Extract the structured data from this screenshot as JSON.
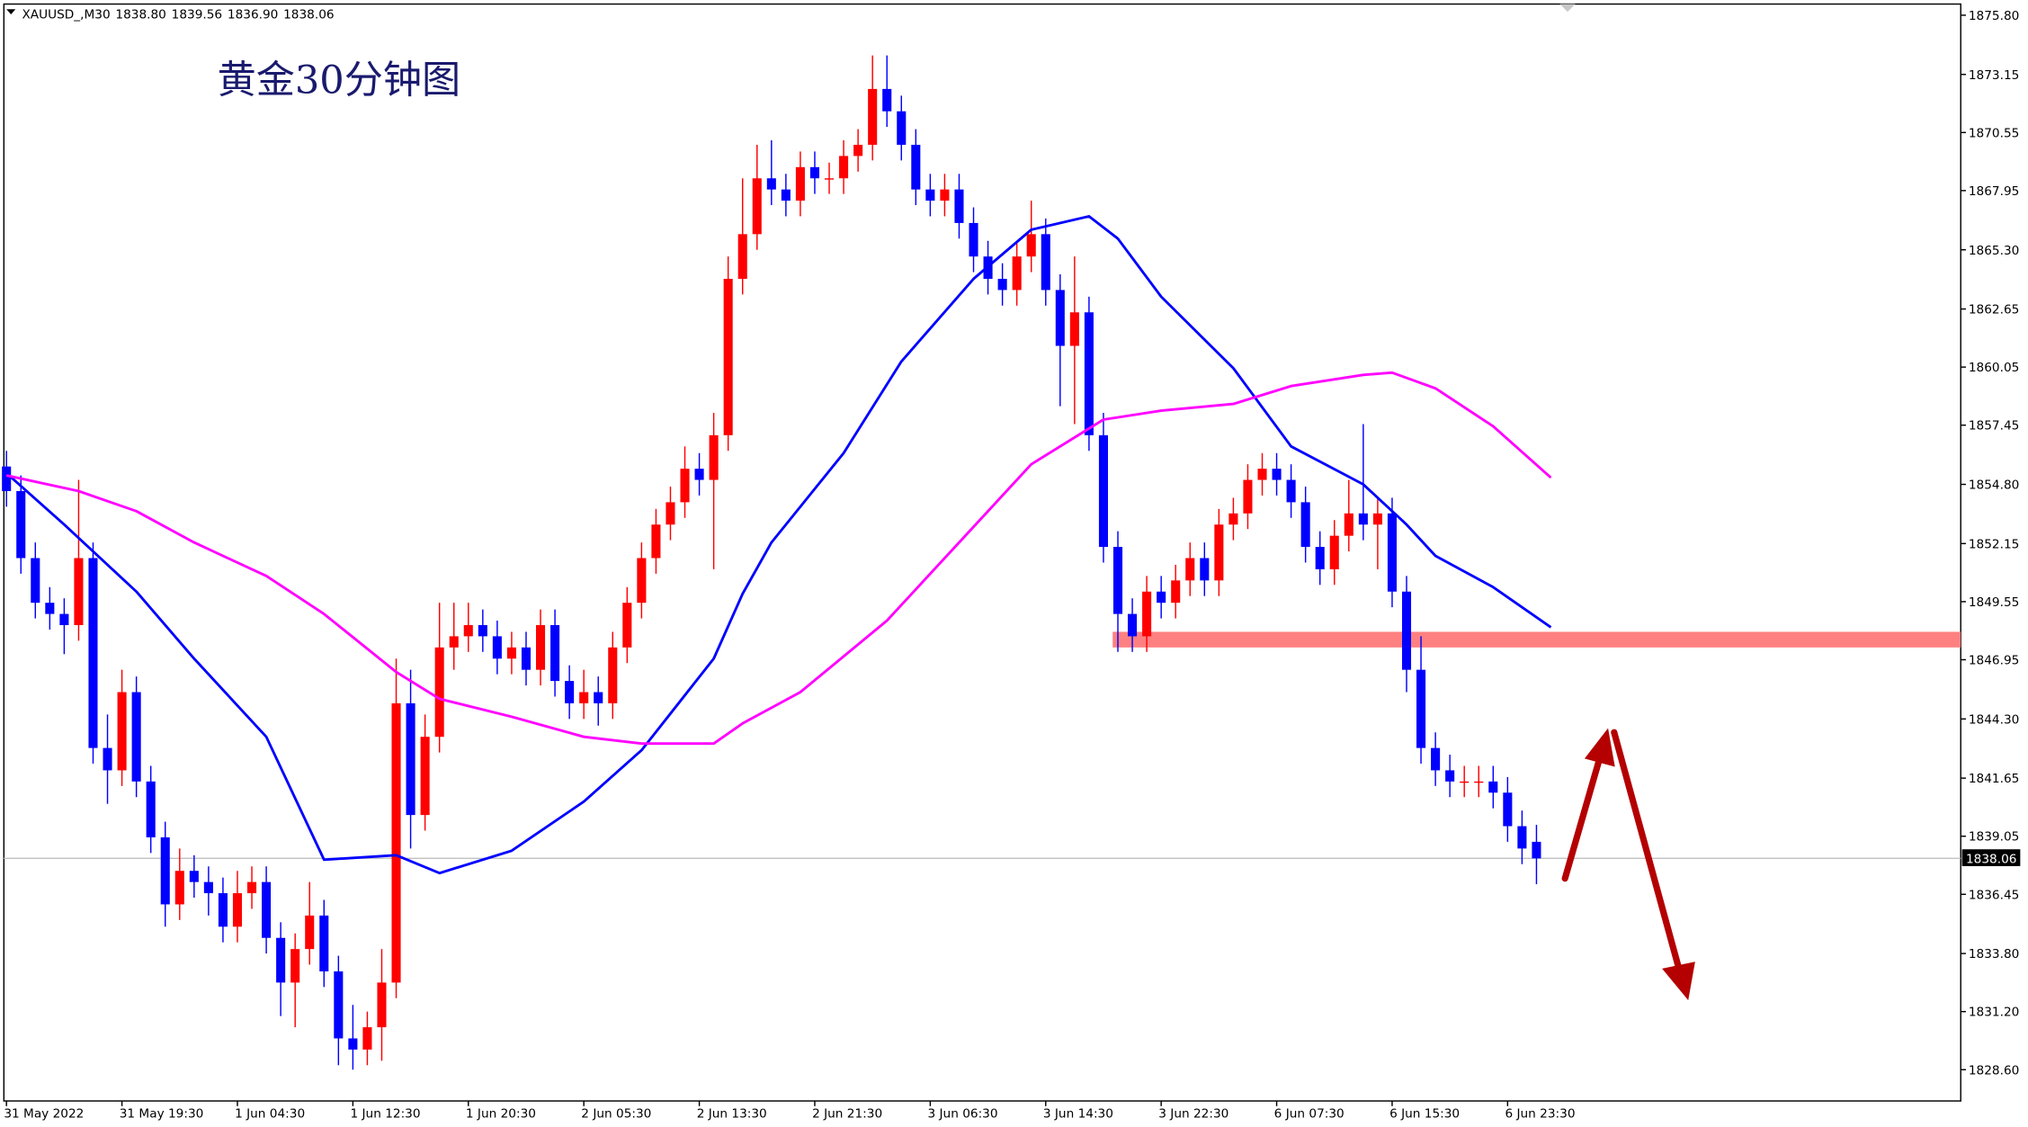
{
  "chart_data": {
    "type": "candlestick",
    "symbol": "XAUUSD_,M30",
    "header_prices": [
      {
        "value": 1838.8,
        "label": "1838.80"
      },
      1839.56,
      {
        "value": 1836.9,
        "label": "1836.90"
      },
      1838.06
    ],
    "annotation": "黄金30分钟图",
    "categories": [
      "31 May 2022",
      null,
      null,
      null,
      null,
      null,
      null,
      null,
      "31 May 19:30",
      null,
      null,
      null,
      null,
      null,
      null,
      null,
      "1 Jun 04:30",
      null,
      null,
      null,
      null,
      null,
      null,
      null,
      "1 Jun 12:30",
      null,
      null,
      null,
      null,
      null,
      null,
      null,
      "1 Jun 20:30",
      null,
      null,
      null,
      null,
      null,
      null,
      null,
      "2 Jun 05:30",
      null,
      null,
      null,
      null,
      null,
      null,
      null,
      "2 Jun 13:30",
      null,
      null,
      null,
      null,
      null,
      null,
      null,
      "2 Jun 21:30",
      null,
      null,
      null,
      null,
      null,
      null,
      null,
      "3 Jun 06:30",
      null,
      null,
      null,
      null,
      null,
      null,
      null,
      "3 Jun 14:30",
      null,
      null,
      null,
      null,
      null,
      null,
      null,
      "3 Jun 22:30",
      null,
      null,
      null,
      null,
      null,
      null,
      null,
      "6 Jun 07:30",
      null,
      null,
      null,
      null,
      null,
      null,
      null,
      "6 Jun 15:30",
      null,
      null,
      null,
      null,
      null,
      null,
      null,
      "6 Jun 23:30",
      null,
      null
    ],
    "open": [
      1855.6,
      1854.5,
      1851.5,
      1849.5,
      1849,
      1848.5,
      1851.5,
      1843,
      1842,
      1845.5,
      1841.5,
      1839,
      1836,
      1837.5,
      1837,
      1836.5,
      1835,
      1836.5,
      1837,
      1834.5,
      1832.5,
      1834,
      1835.5,
      1833,
      1830,
      1829.5,
      1830.5,
      1832.5,
      1845,
      1840,
      1843.5,
      1847.5,
      1848,
      1848.5,
      1848,
      1847,
      1847.5,
      1846.5,
      1848.5,
      1846,
      1845,
      1845.5,
      1845,
      1847.5,
      1849.5,
      1851.5,
      1853,
      1854,
      1855.5,
      1855,
      1857,
      1864,
      1866,
      1868.5,
      1868,
      1867.5,
      1869,
      1868.5,
      1868.5,
      1869.5,
      1870,
      1872.5,
      1871.5,
      1870,
      1868,
      1867.5,
      1868,
      1866.5,
      1865,
      1864,
      1863.5,
      1865,
      1866,
      1863.5,
      1861,
      1862.5,
      1857,
      1852,
      1849,
      1848,
      1850,
      1849.5,
      1850.5,
      1851.5,
      1850.5,
      1853,
      1853.5,
      1855,
      1855.5,
      1855,
      1854,
      1852,
      1851,
      1852.5,
      1853.5,
      1853,
      1853.5,
      1850,
      1846.5,
      1843,
      1842,
      1841.5,
      1841.5,
      1841.5,
      1841,
      1839.5,
      1838.8
    ],
    "high": [
      1856.3,
      1855.2,
      1852.2,
      1850.2,
      1849.7,
      1855,
      1852.2,
      1844.5,
      1846.5,
      1846.2,
      1842.2,
      1839.7,
      1838.5,
      1838.2,
      1837.7,
      1837.2,
      1837.5,
      1837.7,
      1837.7,
      1835.2,
      1834.7,
      1837,
      1836.2,
      1833.7,
      1831.5,
      1831.2,
      1834,
      1847,
      1846.5,
      1844.5,
      1849.5,
      1849.5,
      1849.5,
      1849.2,
      1848.7,
      1848.2,
      1848.2,
      1849.2,
      1849.2,
      1846.7,
      1846.5,
      1846.2,
      1848.2,
      1850.2,
      1852.2,
      1853.7,
      1854.7,
      1856.5,
      1856.2,
      1858,
      1865,
      1868.5,
      1870,
      1870.2,
      1868.7,
      1869.7,
      1869.7,
      1869.2,
      1870.2,
      1870.7,
      1874,
      1874,
      1872.2,
      1870.7,
      1868.7,
      1868.7,
      1868.7,
      1867.2,
      1865.7,
      1864.7,
      1865.7,
      1867.5,
      1866.7,
      1864.2,
      1865,
      1863.2,
      1858,
      1852.7,
      1849.7,
      1850.7,
      1850.7,
      1851.2,
      1852.2,
      1852.2,
      1853.7,
      1854.2,
      1855.7,
      1856.2,
      1856.2,
      1855.7,
      1854.7,
      1852.7,
      1853.2,
      1855,
      1857.5,
      1854.2,
      1854.2,
      1850.7,
      1848,
      1843.7,
      1842.7,
      1842.2,
      1842.2,
      1842.2,
      1841.7,
      1840.2,
      1839.56
    ],
    "low": [
      1853.8,
      1850.8,
      1848.8,
      1848.3,
      1847.2,
      1847.8,
      1842.3,
      1840.5,
      1841.3,
      1840.8,
      1838.3,
      1835,
      1835.3,
      1836.3,
      1835.5,
      1834.3,
      1834.3,
      1835.8,
      1833.8,
      1831,
      1830.5,
      1833.3,
      1832.3,
      1828.8,
      1828.6,
      1828.8,
      1829,
      1831.8,
      1838.5,
      1839.3,
      1842.8,
      1846.5,
      1847.3,
      1847.3,
      1846.3,
      1846.3,
      1845.8,
      1845.8,
      1845.3,
      1844.3,
      1844.3,
      1844,
      1844.3,
      1846.8,
      1848.8,
      1850.8,
      1852.3,
      1853.3,
      1854.3,
      1851,
      1856.3,
      1863.3,
      1865.3,
      1867.3,
      1866.8,
      1866.8,
      1867.8,
      1867.8,
      1867.8,
      1868.8,
      1869.3,
      1870.8,
      1869.3,
      1867.3,
      1866.8,
      1866.8,
      1865.8,
      1864.3,
      1863.3,
      1862.8,
      1862.8,
      1864.3,
      1862.8,
      1858.3,
      1857.5,
      1856.3,
      1851.3,
      1847.3,
      1847.3,
      1847.3,
      1848.8,
      1848.8,
      1849.8,
      1849.8,
      1849.8,
      1852.3,
      1852.8,
      1854.3,
      1854.3,
      1853.3,
      1851.3,
      1850.3,
      1850.3,
      1851.8,
      1852.3,
      1851,
      1849.3,
      1845.5,
      1842.3,
      1841.3,
      1840.8,
      1840.8,
      1840.8,
      1840.3,
      1838.8,
      1837.8,
      1836.9
    ],
    "close": [
      1854.5,
      1851.5,
      1849.5,
      1849,
      1848.5,
      1851.5,
      1843,
      1842,
      1845.5,
      1841.5,
      1839,
      1836,
      1837.5,
      1837,
      1836.5,
      1835,
      1836.5,
      1837,
      1834.5,
      1832.5,
      1834,
      1835.5,
      1833,
      1830,
      1829.5,
      1830.5,
      1832.5,
      1845,
      1840,
      1843.5,
      1847.5,
      1848,
      1848.5,
      1848,
      1847,
      1847.5,
      1846.5,
      1848.5,
      1846,
      1845,
      1845.5,
      1845,
      1847.5,
      1849.5,
      1851.5,
      1853,
      1854,
      1855.5,
      1855,
      1857,
      1864,
      1866,
      1868.5,
      1868,
      1867.5,
      1869,
      1868.5,
      1868.5,
      1869.5,
      1870,
      1872.5,
      1871.5,
      1870,
      1868,
      1867.5,
      1868,
      1866.5,
      1865,
      1864,
      1863.5,
      1865,
      1866,
      1863.5,
      1861,
      1862.5,
      1857,
      1852,
      1849,
      1848,
      1850,
      1849.5,
      1850.5,
      1851.5,
      1850.5,
      1853,
      1853.5,
      1855,
      1855.5,
      1855,
      1854,
      1852,
      1851,
      1852.5,
      1853.5,
      1853,
      1853.5,
      1850,
      1846.5,
      1843,
      1842,
      1841.5,
      1841.5,
      1841.5,
      1841,
      1839.5,
      1838.5,
      1838.06
    ],
    "up_color": "#ff0000",
    "down_color": "#0000ff",
    "overlays": [
      {
        "color": "#0000ff",
        "x": [
          0,
          4,
          9,
          13,
          18,
          22,
          27,
          30,
          35,
          40,
          44,
          49,
          51,
          53,
          58,
          62,
          67,
          71,
          75,
          77,
          80,
          85,
          89,
          94,
          97,
          99,
          103,
          107
        ],
        "values": [
          1855.3,
          1853,
          1850,
          1847,
          1843.5,
          1838,
          1838.2,
          1837.4,
          1838.4,
          1840.6,
          1842.9,
          1847,
          1849.9,
          1852.2,
          1856.2,
          1860.3,
          1864,
          1866.2,
          1866.8,
          1865.8,
          1863.2,
          1860,
          1856.5,
          1854.8,
          1853,
          1851.6,
          1850.2,
          1848.4
        ]
      },
      {
        "color": "#ff00ff",
        "x": [
          0,
          5,
          9,
          13,
          18,
          22,
          27,
          30,
          35,
          40,
          44,
          49,
          51,
          55,
          61,
          66,
          71,
          76,
          80,
          85,
          89,
          94,
          96,
          99,
          103,
          107
        ],
        "values": [
          1855.2,
          1854.5,
          1853.6,
          1852.2,
          1850.7,
          1849,
          1846.4,
          1845.2,
          1844.4,
          1843.5,
          1843.2,
          1843.2,
          1844.1,
          1845.5,
          1848.7,
          1852.2,
          1855.7,
          1857.7,
          1858.1,
          1858.4,
          1859.2,
          1859.7,
          1859.8,
          1859.1,
          1857.4,
          1855.1
        ]
      }
    ],
    "zone": [
      1847.5,
      1848.2
    ],
    "zone_start": 77,
    "zone_color": "#ff8080",
    "last_price": 1838.06,
    "ylim": [
      1827.2,
      1876.3
    ],
    "yticks": [
      {
        "value": 1828.6,
        "label": "1828.60"
      },
      {
        "value": 1831.2,
        "label": "1831.20"
      },
      {
        "value": 1833.8,
        "label": "1833.80"
      },
      1836.45,
      1839.05,
      1841.65,
      {
        "value": 1844.3,
        "label": "1844.30"
      },
      1846.95,
      1849.55,
      1852.15,
      {
        "value": 1854.8,
        "label": "1854.80"
      },
      1857.45,
      1860.05,
      1862.65,
      {
        "value": 1865.3,
        "label": "1865.30"
      },
      1867.95,
      1870.55,
      1873.15,
      {
        "value": 1875.8,
        "label": "1875.80"
      }
    ],
    "grid": false
  }
}
